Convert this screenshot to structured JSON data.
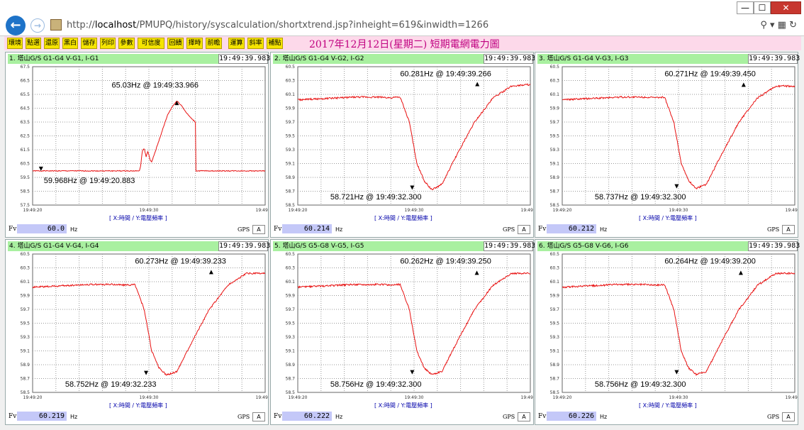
{
  "window": {
    "min_label": "—",
    "max_label": "☐",
    "close_label": "✕"
  },
  "address": {
    "prefix": "http://",
    "host": "localhost",
    "path": "/PMUPQ/history/syscalculation/shortxtrend.jsp?inheight=619&inwidth=1266"
  },
  "toolbar": {
    "buttons": [
      "環境",
      "點選",
      "還原",
      "黑白",
      "儲存",
      "列印",
      "參數",
      "可信度",
      "回饋",
      "擇時",
      "前瞻",
      "運算",
      "斜率",
      "補點"
    ],
    "title": "2017年12月12日(星期二) 短期電網電力圖"
  },
  "common": {
    "axis_note": "[ X:時間 / Y:電壓頻率 ]",
    "fv_label": "Fv",
    "hz_label": "Hz",
    "gps_label": "GPS",
    "gps_value": "A",
    "x_ticks": [
      "19:49:20",
      "19:49:30",
      "19:49:40"
    ]
  },
  "chart_data": [
    {
      "type": "line",
      "title": "1. 塔山G/S G1-G4 V-G1, I-G1",
      "time": "19:49:39.983",
      "fv": "60.0",
      "ylim": [
        57.5,
        67.5
      ],
      "yticks": [
        "67.5",
        "67.0",
        "66.5",
        "66.0",
        "65.5",
        "65.0",
        "64.5",
        "64.0",
        "63.5",
        "63.0",
        "62.5",
        "62.0",
        "61.5",
        "61.0",
        "60.5",
        "60.0",
        "59.5",
        "59.0",
        "58.5",
        "58.0",
        "57.5"
      ],
      "series": [
        {
          "x": [
            0,
            11.5,
            11.6,
            11.8,
            12.0,
            12.2,
            12.4,
            12.6,
            12.8,
            13.0,
            13.5,
            14.0,
            14.5,
            15.0,
            15.5,
            16.0,
            16.5,
            17.0,
            17.5,
            17.5,
            17.6,
            25.0
          ],
          "y": [
            59.97,
            59.97,
            60.3,
            61.4,
            61.6,
            61.0,
            61.4,
            60.8,
            60.6,
            61.0,
            62.0,
            63.0,
            64.0,
            64.6,
            65.03,
            64.7,
            64.2,
            63.8,
            63.5,
            60.0,
            59.97,
            59.97
          ],
          "noise": 0.03
        }
      ],
      "annotations": [
        {
          "text": "65.03Hz @ 19:49:33.966",
          "x": 15.5,
          "y": 65.03,
          "tx": 8.5,
          "ty": 66.0
        },
        {
          "text": "59.968Hz @ 19:49:20.883",
          "x": 0.9,
          "y": 59.97,
          "tx": 1.2,
          "ty": 59.1
        }
      ]
    },
    {
      "type": "line",
      "title": "2. 塔山G/S G1-G4 V-G2, I-G2",
      "time": "19:49:39.983",
      "fv": "60.214",
      "ylim": [
        58.5,
        60.5
      ],
      "yticks": [
        "60.5",
        "60.4",
        "60.3",
        "60.2",
        "60.1",
        "60.0",
        "59.9",
        "59.8",
        "59.7",
        "59.6",
        "59.5",
        "59.4",
        "59.3",
        "59.2",
        "59.1",
        "59.0",
        "58.9",
        "58.8",
        "58.7",
        "58.6",
        "58.5"
      ],
      "series": [
        {
          "x": [
            0,
            3,
            6,
            9,
            10,
            11,
            12,
            12.8,
            13.6,
            14.4,
            15.5,
            17,
            19,
            21,
            23,
            24.5
          ],
          "y": [
            60.02,
            60.04,
            60.06,
            60.06,
            60.05,
            60.06,
            59.7,
            59.1,
            58.85,
            58.72,
            58.8,
            59.2,
            59.7,
            60.05,
            60.22,
            60.24
          ],
          "noise": 0.012
        }
      ],
      "annotations": [
        {
          "text": "60.281Hz @ 19:49:39.266",
          "x": 19.3,
          "y": 60.28,
          "tx": 11.0,
          "ty": 60.36
        },
        {
          "text": "58.721Hz @ 19:49:32.300",
          "x": 12.3,
          "y": 58.72,
          "tx": 3.5,
          "ty": 58.58
        }
      ]
    },
    {
      "type": "line",
      "title": "3. 塔山G/S G1-G4 V-G3, I-G3",
      "time": "19:49:39.983",
      "fv": "60.212",
      "ylim": [
        58.5,
        60.5
      ],
      "yticks": [
        "60.5",
        "60.4",
        "60.3",
        "60.2",
        "60.1",
        "60.0",
        "59.9",
        "59.8",
        "59.7",
        "59.6",
        "59.5",
        "59.4",
        "59.3",
        "59.2",
        "59.1",
        "59.0",
        "58.9",
        "58.8",
        "58.7",
        "58.6",
        "58.5"
      ],
      "series": [
        {
          "x": [
            0,
            3,
            6,
            9,
            10,
            11,
            12,
            12.8,
            13.6,
            14.4,
            15.5,
            17,
            19,
            21,
            23,
            24.5
          ],
          "y": [
            60.02,
            60.04,
            60.06,
            60.06,
            60.05,
            60.06,
            59.7,
            59.1,
            58.85,
            58.74,
            58.8,
            59.2,
            59.7,
            60.05,
            60.22,
            60.22
          ],
          "noise": 0.012
        }
      ],
      "annotations": [
        {
          "text": "60.271Hz @ 19:49:39.450",
          "x": 19.5,
          "y": 60.27,
          "tx": 11.0,
          "ty": 60.36
        },
        {
          "text": "58.737Hz @ 19:49:32.300",
          "x": 12.3,
          "y": 58.74,
          "tx": 3.5,
          "ty": 58.58
        }
      ]
    },
    {
      "type": "line",
      "title": "4. 塔山G/S G1-G4 V-G4, I-G4",
      "time": "19:49:39.983",
      "fv": "60.219",
      "ylim": [
        58.5,
        60.5
      ],
      "yticks": [
        "60.5",
        "60.4",
        "60.3",
        "60.2",
        "60.1",
        "60.0",
        "59.9",
        "59.8",
        "59.7",
        "59.6",
        "59.5",
        "59.4",
        "59.3",
        "59.2",
        "59.1",
        "59.0",
        "58.9",
        "58.8",
        "58.7",
        "58.6",
        "58.5"
      ],
      "series": [
        {
          "x": [
            0,
            3,
            6,
            9,
            10,
            11,
            12,
            12.8,
            13.6,
            14.4,
            15.5,
            17,
            19,
            21,
            23,
            24.5
          ],
          "y": [
            60.02,
            60.04,
            60.06,
            60.06,
            60.05,
            60.06,
            59.7,
            59.1,
            58.85,
            58.75,
            58.8,
            59.2,
            59.7,
            60.05,
            60.22,
            60.22
          ],
          "noise": 0.012
        }
      ],
      "annotations": [
        {
          "text": "60.273Hz @ 19:49:39.233",
          "x": 19.2,
          "y": 60.27,
          "tx": 11.0,
          "ty": 60.36
        },
        {
          "text": "58.752Hz @ 19:49:32.233",
          "x": 12.2,
          "y": 58.75,
          "tx": 3.5,
          "ty": 58.58
        }
      ]
    },
    {
      "type": "line",
      "title": "5. 塔山G/S G5-G8 V-G5, I-G5",
      "time": "19:49:39.983",
      "fv": "60.222",
      "ylim": [
        58.5,
        60.5
      ],
      "yticks": [
        "60.5",
        "60.4",
        "60.3",
        "60.2",
        "60.1",
        "60.0",
        "59.9",
        "59.8",
        "59.7",
        "59.6",
        "59.5",
        "59.4",
        "59.3",
        "59.2",
        "59.1",
        "59.0",
        "58.9",
        "58.8",
        "58.7",
        "58.6",
        "58.5"
      ],
      "series": [
        {
          "x": [
            0,
            3,
            6,
            9,
            10,
            11,
            12,
            12.8,
            13.6,
            14.4,
            15.5,
            17,
            19,
            21,
            23,
            24.5
          ],
          "y": [
            60.02,
            60.04,
            60.06,
            60.06,
            60.05,
            60.06,
            59.7,
            59.1,
            58.85,
            58.76,
            58.8,
            59.2,
            59.7,
            60.05,
            60.22,
            60.22
          ],
          "noise": 0.012
        }
      ],
      "annotations": [
        {
          "text": "60.262Hz @ 19:49:39.250",
          "x": 19.25,
          "y": 60.26,
          "tx": 11.0,
          "ty": 60.36
        },
        {
          "text": "58.756Hz @ 19:49:32.300",
          "x": 12.3,
          "y": 58.76,
          "tx": 3.5,
          "ty": 58.58
        }
      ]
    },
    {
      "type": "line",
      "title": "6. 塔山G/S G5-G8 V-G6, I-G6",
      "time": "19:49:39.983",
      "fv": "60.226",
      "ylim": [
        58.5,
        60.5
      ],
      "yticks": [
        "60.5",
        "60.4",
        "60.3",
        "60.2",
        "60.1",
        "60.0",
        "59.9",
        "59.8",
        "59.7",
        "59.6",
        "59.5",
        "59.4",
        "59.3",
        "59.2",
        "59.1",
        "59.0",
        "58.9",
        "58.8",
        "58.7",
        "58.6",
        "58.5"
      ],
      "series": [
        {
          "x": [
            0,
            3,
            6,
            9,
            10,
            11,
            12,
            12.8,
            13.6,
            14.4,
            15.5,
            17,
            19,
            21,
            23,
            24.5
          ],
          "y": [
            60.02,
            60.04,
            60.06,
            60.06,
            60.05,
            60.06,
            59.7,
            59.1,
            58.85,
            58.76,
            58.8,
            59.2,
            59.7,
            60.05,
            60.22,
            60.22
          ],
          "noise": 0.012
        }
      ],
      "annotations": [
        {
          "text": "60.264Hz @ 19:49:39.200",
          "x": 19.2,
          "y": 60.26,
          "tx": 11.0,
          "ty": 60.36
        },
        {
          "text": "58.756Hz @ 19:49:32.300",
          "x": 12.3,
          "y": 58.76,
          "tx": 3.5,
          "ty": 58.58
        }
      ]
    }
  ]
}
